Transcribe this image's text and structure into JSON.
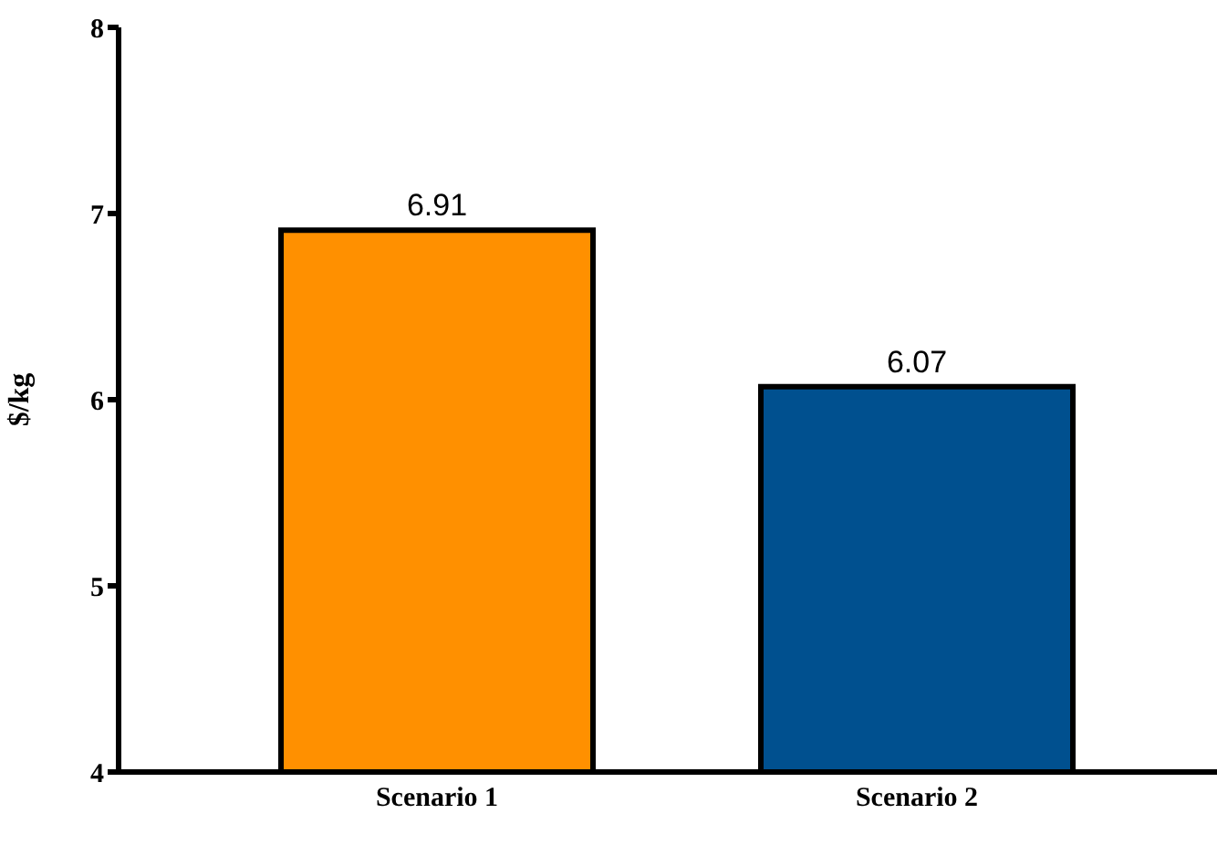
{
  "chart_data": {
    "type": "bar",
    "ylabel": "$/kg",
    "categories": [
      "Scenario 1",
      "Scenario 2"
    ],
    "values": [
      6.91,
      6.07
    ],
    "colors": [
      "#ff9000",
      "#00508f"
    ],
    "ylim": [
      4,
      8
    ],
    "yticks": [
      4,
      5,
      6,
      7,
      8
    ],
    "data_labels": true,
    "grid": false,
    "legend": false
  }
}
